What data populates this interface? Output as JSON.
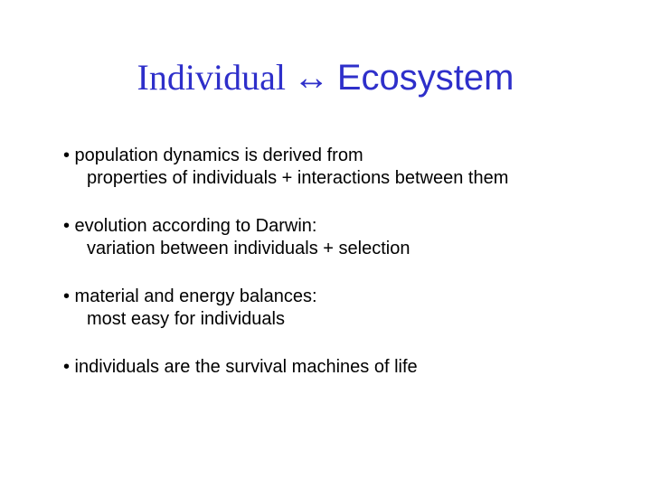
{
  "title": {
    "left": "Individual",
    "arrow": "↔",
    "right": "Ecosystem",
    "color": "#2e2fca",
    "left_font": "Times New Roman",
    "right_font": "Arial",
    "fontsize": 40
  },
  "body": {
    "color": "#000000",
    "fontsize": 20,
    "font": "Arial"
  },
  "bullets": [
    {
      "lead": "• population dynamics is derived from",
      "sub": "properties of individuals + interactions between them"
    },
    {
      "lead": "• evolution according to Darwin:",
      "sub": "variation between individuals + selection"
    },
    {
      "lead": "• material and energy balances:",
      "sub": "most easy for individuals"
    },
    {
      "lead": "• individuals are the survival machines of life",
      "sub": ""
    }
  ],
  "background_color": "#ffffff"
}
